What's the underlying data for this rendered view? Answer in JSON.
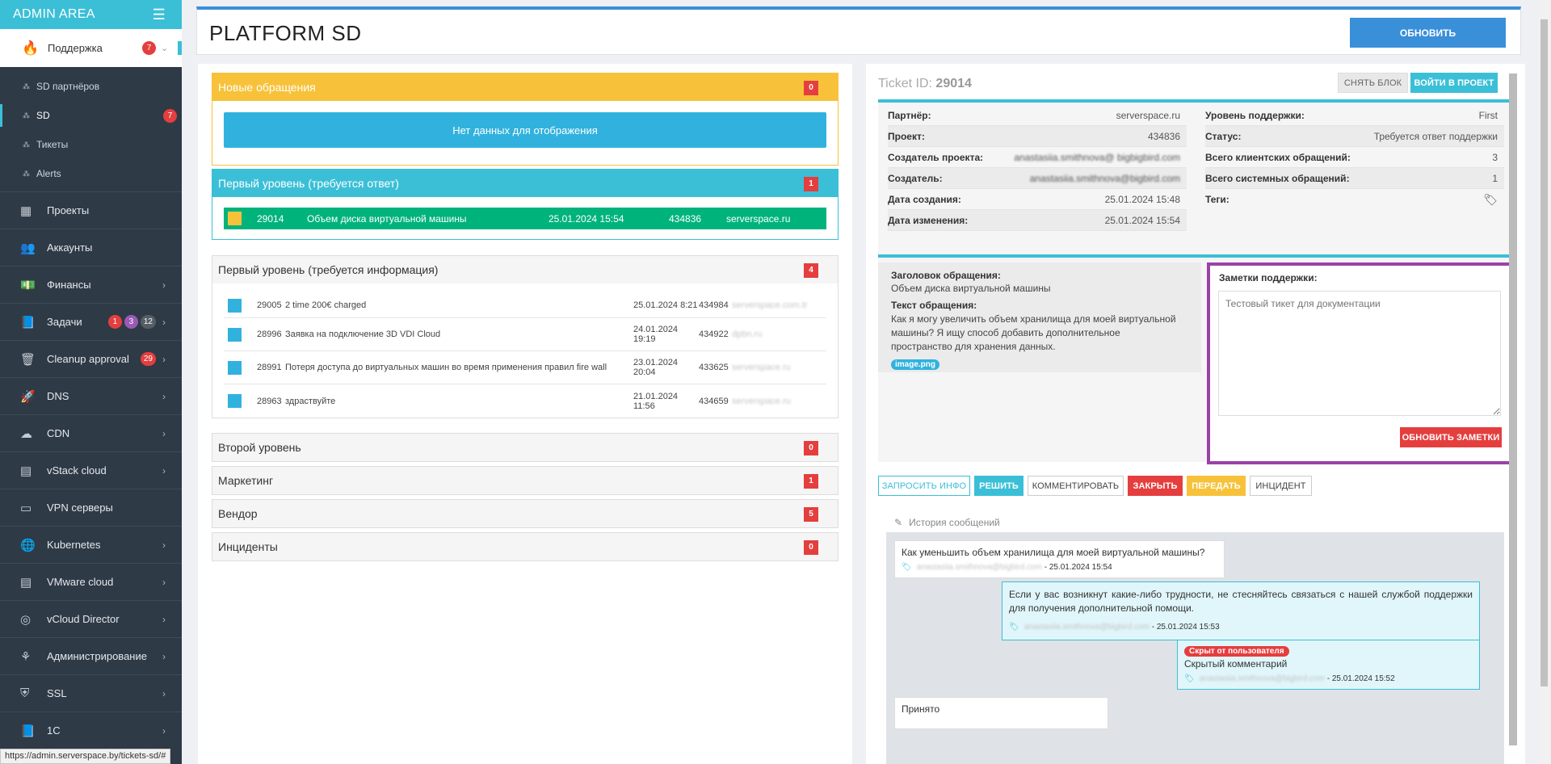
{
  "sidebar": {
    "title": "ADMIN AREA",
    "support": {
      "label": "Поддержка",
      "badge": "7"
    },
    "sub_items": [
      {
        "label": "SD партнёров"
      },
      {
        "label": "SD",
        "badge": "7"
      },
      {
        "label": "Тикеты"
      },
      {
        "label": "Alerts"
      }
    ],
    "nav": [
      {
        "label": "Проекты",
        "icon": "grid-icon"
      },
      {
        "label": "Аккаунты",
        "icon": "users-icon"
      },
      {
        "label": "Финансы",
        "icon": "money-icon"
      },
      {
        "label": "Задачи",
        "icon": "book-icon",
        "badges": [
          "1",
          "3",
          "12"
        ]
      },
      {
        "label": "Cleanup approval",
        "icon": "trash-icon",
        "badges": [
          "29"
        ]
      },
      {
        "label": "DNS",
        "icon": "rocket-icon"
      },
      {
        "label": "CDN",
        "icon": "cloud-icon"
      },
      {
        "label": "vStack cloud",
        "icon": "server-icon"
      },
      {
        "label": "VPN серверы",
        "icon": "vpn-icon"
      },
      {
        "label": "Kubernetes",
        "icon": "globe-icon"
      },
      {
        "label": "VMware cloud",
        "icon": "server-icon"
      },
      {
        "label": "vCloud Director",
        "icon": "podcast-icon"
      },
      {
        "label": "Администрирование",
        "icon": "sitemap-icon"
      },
      {
        "label": "SSL",
        "icon": "shield-icon"
      },
      {
        "label": "1C",
        "icon": "book-icon"
      }
    ]
  },
  "status_url": "https://admin.serverspace.by/tickets-sd/#",
  "header": {
    "title": "PLATFORM SD",
    "update_button": "ОБНОВИТЬ"
  },
  "groups": {
    "new": {
      "title": "Новые обращения",
      "count": "0",
      "empty": "Нет данных для отображения"
    },
    "first_reply": {
      "title": "Первый уровень (требуется ответ)",
      "count": "1",
      "row": {
        "id": "29014",
        "subject": "Объем диска виртуальной машины",
        "date": "25.01.2024 15:54",
        "project": "434836",
        "partner": "serverspace.ru"
      }
    },
    "first_info": {
      "title": "Первый уровень (требуется информация)",
      "count": "4",
      "rows": [
        {
          "id": "29005",
          "subject": "2 time 200€ charged",
          "date": "25.01.2024 8:21",
          "project": "434984",
          "partner": "serverspace.com.tr"
        },
        {
          "id": "28996",
          "subject": "Заявка на подключение 3D VDI Cloud",
          "date": "24.01.2024 19:19",
          "project": "434922",
          "partner": "dpbn.ru"
        },
        {
          "id": "28991",
          "subject": "Потеря доступа до виртуальных машин во время применения правил fire wall",
          "date": "23.01.2024 20:04",
          "project": "433625",
          "partner": "serverspace.ru"
        },
        {
          "id": "28963",
          "subject": "здраствуйте",
          "date": "21.01.2024 11:56",
          "project": "434659",
          "partner": "serverspace.ru"
        }
      ]
    },
    "second": {
      "title": "Второй уровень",
      "count": "0"
    },
    "marketing": {
      "title": "Маркетинг",
      "count": "1"
    },
    "vendor": {
      "title": "Вендор",
      "count": "5"
    },
    "incidents": {
      "title": "Инциденты",
      "count": "0"
    }
  },
  "ticket": {
    "label": "Ticket ID:",
    "id": "29014",
    "unlock_button": "СНЯТЬ БЛОК",
    "enter_button": "ВОЙТИ В ПРОЕКТ",
    "left": [
      {
        "k": "Партнёр:",
        "v": "serverspace.ru",
        "link": true
      },
      {
        "k": "Проект:",
        "v": "434836",
        "link": true
      },
      {
        "k": "Создатель проекта:",
        "v": "anastasiia.smithnova@ bigbigbird.com",
        "blur": true
      },
      {
        "k": "Создатель:",
        "v": "anastasiia.smithnova@bigbird.com",
        "blur": true
      },
      {
        "k": "Дата создания:",
        "v": "25.01.2024 15:48"
      },
      {
        "k": "Дата изменения:",
        "v": "25.01.2024 15:54"
      }
    ],
    "right": [
      {
        "k": "Уровень поддержки:",
        "v": "First"
      },
      {
        "k": "Статус:",
        "v": "Требуется ответ поддержки"
      },
      {
        "k": "Всего клиентских обращений:",
        "v": "3",
        "link": true
      },
      {
        "k": "Всего системных обращений:",
        "v": "1",
        "link": true
      },
      {
        "k": "Теги:",
        "v": ""
      }
    ],
    "subject_label": "Заголовок обращения:",
    "subject": "Объем диска виртуальной машины",
    "text_label": "Текст обращения:",
    "text": "Как я могу увеличить объем хранилища для моей виртуальной машины? Я ищу способ добавить дополнительное пространство для хранения данных.",
    "attachment": "image.png",
    "notes_label": "Заметки поддержки:",
    "notes_placeholder": "Тестовый тикет для документации",
    "notes_button": "ОБНОВИТЬ ЗАМЕТКИ"
  },
  "actions": [
    "ЗАПРОСИТЬ ИНФО",
    "РЕШИТЬ",
    "КОММЕНТИРОВАТЬ",
    "ЗАКРЫТЬ",
    "ПЕРЕДАТЬ",
    "ИНЦИДЕНТ"
  ],
  "history": {
    "title": "История сообщений",
    "messages": [
      {
        "text": "Как уменьшить объем хранилища для моей виртуальной машины?",
        "author": "anastasiia.smithnova@bigbird.com",
        "time": "- 25.01.2024 15:54"
      },
      {
        "text": "Если у вас возникнут какие-либо трудности, не стесняйтесь связаться с нашей службой поддержки для получения дополнительной помощи.",
        "author": "anastasiia.smithnova@bigbird.com",
        "time": "- 25.01.2024 15:53"
      },
      {
        "hidden_badge": "Скрыт от пользователя",
        "text": "Скрытый комментарий",
        "author": "anastasiia.smithnova@bigbird.com",
        "time": "- 25.01.2024 15:52"
      },
      {
        "text": "Принято"
      }
    ]
  },
  "colors": {
    "accent": "#3bbfd7",
    "danger": "#e53e3e",
    "warning": "#f7c23a",
    "success": "#00b37b",
    "primary": "#3a8fd9",
    "notes_border": "#9b42a8"
  }
}
